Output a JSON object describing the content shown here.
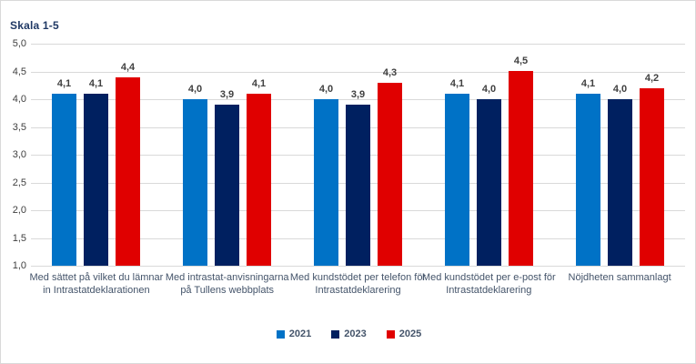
{
  "chart_data": {
    "type": "bar",
    "title": "Skala 1-5",
    "categories": [
      "Med sättet på vilket du lämnar in Intrastatdeklarationen",
      "Med intrastat-anvisningarna på Tullens webbplats",
      "Med kundstödet per telefon för Intrastatdeklarering",
      "Med kundstödet per e-post för Intrastatdeklarering",
      "Nöjdheten sammanlagt"
    ],
    "series": [
      {
        "name": "2021",
        "color": "#0072c6",
        "values": [
          4.1,
          4.0,
          4.0,
          4.1,
          4.1
        ]
      },
      {
        "name": "2023",
        "color": "#002060",
        "values": [
          4.1,
          3.9,
          3.9,
          4.0,
          4.0
        ]
      },
      {
        "name": "2025",
        "color": "#e00000",
        "values": [
          4.4,
          4.1,
          4.3,
          4.5,
          4.2
        ]
      }
    ],
    "value_labels": [
      [
        "4,1",
        "4,0",
        "4,0",
        "4,1",
        "4,1"
      ],
      [
        "4,1",
        "3,9",
        "3,9",
        "4,0",
        "4,0"
      ],
      [
        "4,4",
        "4,1",
        "4,3",
        "4,5",
        "4,2"
      ]
    ],
    "xlabel": "",
    "ylabel": "",
    "ylim": [
      1.0,
      5.0
    ],
    "ytick_step": 0.5,
    "ytick_labels": [
      "5,0",
      "4,5",
      "4,0",
      "3,5",
      "3,0",
      "2,5",
      "2,0",
      "1,5",
      "1,0"
    ],
    "grid": true,
    "legend_position": "bottom",
    "decimal_separator": ","
  },
  "palette": {
    "title_text": "#1f3864",
    "axis_tick_text": "#404040",
    "data_label_text": "#404040",
    "category_label_text": "#44546a",
    "legend_text": "#44546a",
    "gridline": "#d9d9d9",
    "border": "#d9d9d9",
    "background": "#ffffff"
  }
}
